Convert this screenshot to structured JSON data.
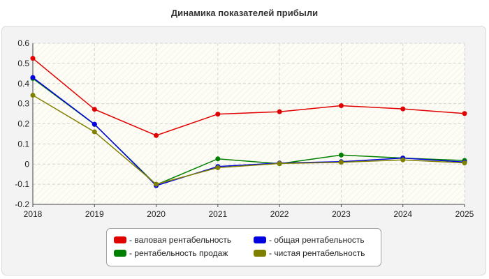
{
  "chart_data": {
    "type": "line",
    "title": "Динамика показателей прибыли",
    "x": [
      "2018",
      "2019",
      "2020",
      "2021",
      "2022",
      "2023",
      "2024",
      "2025"
    ],
    "ylim": [
      -0.2,
      0.6
    ],
    "yticks": [
      "0.6",
      "0.5",
      "0.4",
      "0.3",
      "0.2",
      "0.1",
      "0",
      "-0.1",
      "-0.2"
    ],
    "ytick_values": [
      0.6,
      0.5,
      0.4,
      0.3,
      0.2,
      0.1,
      0,
      -0.1,
      -0.2
    ],
    "grid": true,
    "legend_position": "bottom",
    "series": [
      {
        "name": "- валовая рентабельность",
        "color": "#e00000",
        "values": [
          0.525,
          0.272,
          0.142,
          0.248,
          0.26,
          0.29,
          0.274,
          0.251
        ]
      },
      {
        "name": "- рентабельность продаж",
        "color": "#008000",
        "values": [
          0.425,
          0.197,
          -0.103,
          0.026,
          0.002,
          0.045,
          0.03,
          0.018
        ]
      },
      {
        "name": "- общая рентабельность",
        "color": "#0000e0",
        "values": [
          0.43,
          0.198,
          -0.107,
          -0.012,
          0.005,
          0.012,
          0.03,
          0.01
        ]
      },
      {
        "name": "- чистая рентабельность",
        "color": "#808000",
        "values": [
          0.342,
          0.16,
          -0.1,
          -0.018,
          0.003,
          0.009,
          0.021,
          0.006
        ]
      }
    ]
  }
}
